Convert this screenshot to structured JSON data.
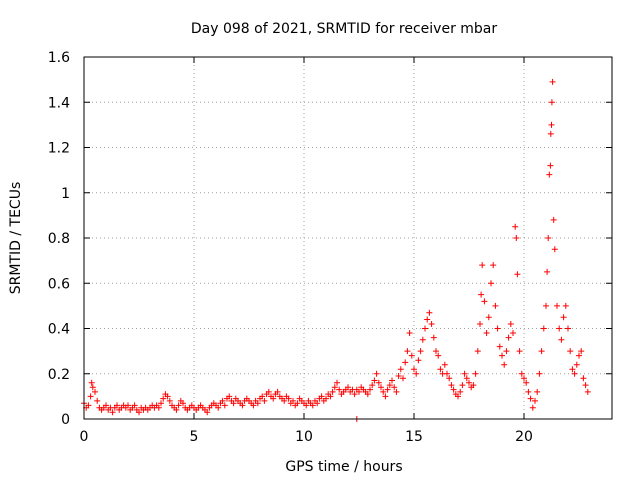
{
  "chart_data": {
    "type": "scatter",
    "title": "Day 098 of 2021, SRMTID for receiver mbar",
    "xlabel": "GPS time / hours",
    "ylabel": "SRMTID / TECUs",
    "xlim": [
      0,
      24
    ],
    "ylim": [
      0,
      1.6
    ],
    "x_ticks": [
      0,
      5,
      10,
      15,
      20
    ],
    "x_tick_labels": [
      "0",
      "5",
      "10",
      "15",
      "20"
    ],
    "y_ticks": [
      0,
      0.2,
      0.4,
      0.6,
      0.8,
      1.0,
      1.2,
      1.4,
      1.6
    ],
    "y_tick_labels": [
      "0",
      "0.2",
      "0.4",
      "0.6",
      "0.8",
      "1",
      "1.2",
      "1.4",
      "1.6"
    ],
    "grid": true,
    "series": [
      {
        "name": "SRMTID",
        "marker": "plus",
        "color": "#ff0000",
        "points": [
          [
            0.0,
            0.07
          ],
          [
            0.1,
            0.05
          ],
          [
            0.2,
            0.06
          ],
          [
            0.3,
            0.1
          ],
          [
            0.35,
            0.16
          ],
          [
            0.4,
            0.14
          ],
          [
            0.5,
            0.12
          ],
          [
            0.6,
            0.08
          ],
          [
            0.7,
            0.05
          ],
          [
            0.8,
            0.04
          ],
          [
            0.9,
            0.05
          ],
          [
            1.0,
            0.06
          ],
          [
            1.1,
            0.04
          ],
          [
            1.2,
            0.05
          ],
          [
            1.3,
            0.03
          ],
          [
            1.4,
            0.05
          ],
          [
            1.5,
            0.06
          ],
          [
            1.6,
            0.04
          ],
          [
            1.7,
            0.05
          ],
          [
            1.8,
            0.06
          ],
          [
            1.9,
            0.05
          ],
          [
            2.0,
            0.06
          ],
          [
            2.1,
            0.04
          ],
          [
            2.2,
            0.05
          ],
          [
            2.3,
            0.06
          ],
          [
            2.4,
            0.04
          ],
          [
            2.5,
            0.03
          ],
          [
            2.6,
            0.05
          ],
          [
            2.7,
            0.04
          ],
          [
            2.8,
            0.05
          ],
          [
            2.9,
            0.04
          ],
          [
            3.0,
            0.05
          ],
          [
            3.1,
            0.06
          ],
          [
            3.2,
            0.05
          ],
          [
            3.3,
            0.06
          ],
          [
            3.4,
            0.05
          ],
          [
            3.5,
            0.07
          ],
          [
            3.6,
            0.09
          ],
          [
            3.7,
            0.11
          ],
          [
            3.8,
            0.1
          ],
          [
            3.9,
            0.08
          ],
          [
            4.0,
            0.06
          ],
          [
            4.1,
            0.05
          ],
          [
            4.2,
            0.04
          ],
          [
            4.3,
            0.06
          ],
          [
            4.4,
            0.08
          ],
          [
            4.5,
            0.07
          ],
          [
            4.6,
            0.05
          ],
          [
            4.7,
            0.04
          ],
          [
            4.8,
            0.05
          ],
          [
            4.9,
            0.06
          ],
          [
            5.0,
            0.05
          ],
          [
            5.1,
            0.04
          ],
          [
            5.2,
            0.05
          ],
          [
            5.3,
            0.06
          ],
          [
            5.4,
            0.05
          ],
          [
            5.5,
            0.04
          ],
          [
            5.6,
            0.03
          ],
          [
            5.7,
            0.05
          ],
          [
            5.8,
            0.06
          ],
          [
            5.9,
            0.07
          ],
          [
            6.0,
            0.06
          ],
          [
            6.1,
            0.05
          ],
          [
            6.2,
            0.07
          ],
          [
            6.3,
            0.08
          ],
          [
            6.4,
            0.06
          ],
          [
            6.5,
            0.09
          ],
          [
            6.6,
            0.1
          ],
          [
            6.7,
            0.08
          ],
          [
            6.8,
            0.07
          ],
          [
            6.9,
            0.09
          ],
          [
            7.0,
            0.08
          ],
          [
            7.1,
            0.07
          ],
          [
            7.2,
            0.06
          ],
          [
            7.3,
            0.08
          ],
          [
            7.4,
            0.09
          ],
          [
            7.5,
            0.08
          ],
          [
            7.6,
            0.07
          ],
          [
            7.7,
            0.06
          ],
          [
            7.8,
            0.08
          ],
          [
            7.9,
            0.07
          ],
          [
            8.0,
            0.09
          ],
          [
            8.1,
            0.1
          ],
          [
            8.2,
            0.08
          ],
          [
            8.3,
            0.11
          ],
          [
            8.4,
            0.12
          ],
          [
            8.5,
            0.1
          ],
          [
            8.6,
            0.09
          ],
          [
            8.7,
            0.11
          ],
          [
            8.8,
            0.12
          ],
          [
            8.9,
            0.1
          ],
          [
            9.0,
            0.09
          ],
          [
            9.1,
            0.08
          ],
          [
            9.2,
            0.1
          ],
          [
            9.3,
            0.09
          ],
          [
            9.4,
            0.07
          ],
          [
            9.5,
            0.08
          ],
          [
            9.6,
            0.06
          ],
          [
            9.7,
            0.07
          ],
          [
            9.8,
            0.09
          ],
          [
            9.9,
            0.08
          ],
          [
            10.0,
            0.07
          ],
          [
            10.1,
            0.06
          ],
          [
            10.2,
            0.08
          ],
          [
            10.3,
            0.07
          ],
          [
            10.4,
            0.06
          ],
          [
            10.5,
            0.08
          ],
          [
            10.6,
            0.07
          ],
          [
            10.7,
            0.09
          ],
          [
            10.8,
            0.1
          ],
          [
            10.9,
            0.08
          ],
          [
            11.0,
            0.09
          ],
          [
            11.1,
            0.11
          ],
          [
            11.2,
            0.1
          ],
          [
            11.3,
            0.12
          ],
          [
            11.4,
            0.14
          ],
          [
            11.5,
            0.16
          ],
          [
            11.6,
            0.13
          ],
          [
            11.7,
            0.11
          ],
          [
            11.8,
            0.12
          ],
          [
            11.9,
            0.13
          ],
          [
            12.0,
            0.14
          ],
          [
            12.1,
            0.12
          ],
          [
            12.2,
            0.13
          ],
          [
            12.3,
            0.11
          ],
          [
            12.4,
            0.13
          ],
          [
            12.5,
            0.12
          ],
          [
            12.6,
            0.14
          ],
          [
            12.7,
            0.13
          ],
          [
            12.8,
            0.12
          ],
          [
            12.9,
            0.11
          ],
          [
            13.0,
            0.13
          ],
          [
            13.1,
            0.15
          ],
          [
            13.2,
            0.17
          ],
          [
            13.3,
            0.2
          ],
          [
            13.4,
            0.16
          ],
          [
            13.5,
            0.14
          ],
          [
            13.6,
            0.12
          ],
          [
            13.7,
            0.1
          ],
          [
            13.8,
            0.13
          ],
          [
            13.9,
            0.15
          ],
          [
            14.0,
            0.17
          ],
          [
            14.1,
            0.14
          ],
          [
            14.2,
            0.12
          ],
          [
            14.3,
            0.19
          ],
          [
            14.4,
            0.22
          ],
          [
            14.5,
            0.18
          ],
          [
            14.6,
            0.25
          ],
          [
            14.7,
            0.3
          ],
          [
            14.8,
            0.38
          ],
          [
            14.9,
            0.28
          ],
          [
            15.0,
            0.22
          ],
          [
            15.1,
            0.2
          ],
          [
            15.2,
            0.26
          ],
          [
            15.3,
            0.3
          ],
          [
            15.4,
            0.35
          ],
          [
            15.5,
            0.4
          ],
          [
            15.6,
            0.44
          ],
          [
            15.7,
            0.47
          ],
          [
            15.8,
            0.42
          ],
          [
            15.9,
            0.36
          ],
          [
            16.0,
            0.3
          ],
          [
            16.1,
            0.28
          ],
          [
            16.2,
            0.22
          ],
          [
            16.3,
            0.2
          ],
          [
            16.4,
            0.24
          ],
          [
            16.5,
            0.2
          ],
          [
            16.6,
            0.18
          ],
          [
            16.7,
            0.15
          ],
          [
            16.8,
            0.13
          ],
          [
            16.9,
            0.11
          ],
          [
            17.0,
            0.1
          ],
          [
            17.1,
            0.12
          ],
          [
            17.2,
            0.15
          ],
          [
            17.3,
            0.2
          ],
          [
            17.4,
            0.18
          ],
          [
            17.5,
            0.16
          ],
          [
            17.6,
            0.14
          ],
          [
            17.7,
            0.15
          ],
          [
            17.8,
            0.2
          ],
          [
            17.9,
            0.3
          ],
          [
            18.0,
            0.42
          ],
          [
            18.05,
            0.55
          ],
          [
            18.1,
            0.68
          ],
          [
            18.2,
            0.52
          ],
          [
            18.3,
            0.38
          ],
          [
            18.4,
            0.45
          ],
          [
            18.5,
            0.6
          ],
          [
            18.6,
            0.68
          ],
          [
            18.7,
            0.5
          ],
          [
            18.8,
            0.4
          ],
          [
            18.9,
            0.32
          ],
          [
            19.0,
            0.28
          ],
          [
            19.1,
            0.24
          ],
          [
            19.2,
            0.3
          ],
          [
            19.3,
            0.36
          ],
          [
            19.4,
            0.42
          ],
          [
            19.5,
            0.38
          ],
          [
            19.6,
            0.85
          ],
          [
            19.65,
            0.8
          ],
          [
            19.7,
            0.64
          ],
          [
            19.8,
            0.3
          ],
          [
            19.9,
            0.2
          ],
          [
            20.0,
            0.18
          ],
          [
            20.1,
            0.16
          ],
          [
            20.2,
            0.12
          ],
          [
            20.3,
            0.09
          ],
          [
            20.4,
            0.05
          ],
          [
            20.5,
            0.08
          ],
          [
            20.6,
            0.12
          ],
          [
            20.7,
            0.2
          ],
          [
            20.8,
            0.3
          ],
          [
            20.9,
            0.4
          ],
          [
            21.0,
            0.5
          ],
          [
            21.05,
            0.65
          ],
          [
            21.1,
            0.8
          ],
          [
            21.15,
            1.08
          ],
          [
            21.2,
            1.12
          ],
          [
            21.22,
            1.26
          ],
          [
            21.25,
            1.3
          ],
          [
            21.27,
            1.4
          ],
          [
            21.3,
            1.49
          ],
          [
            21.35,
            0.88
          ],
          [
            21.4,
            0.75
          ],
          [
            21.5,
            0.5
          ],
          [
            21.6,
            0.4
          ],
          [
            21.7,
            0.35
          ],
          [
            21.8,
            0.45
          ],
          [
            21.9,
            0.5
          ],
          [
            22.0,
            0.4
          ],
          [
            22.1,
            0.3
          ],
          [
            22.2,
            0.22
          ],
          [
            22.3,
            0.2
          ],
          [
            22.4,
            0.24
          ],
          [
            22.5,
            0.28
          ],
          [
            22.6,
            0.3
          ],
          [
            22.7,
            0.18
          ],
          [
            22.8,
            0.15
          ],
          [
            22.9,
            0.12
          ],
          [
            12.4,
            0.0
          ]
        ]
      }
    ]
  }
}
